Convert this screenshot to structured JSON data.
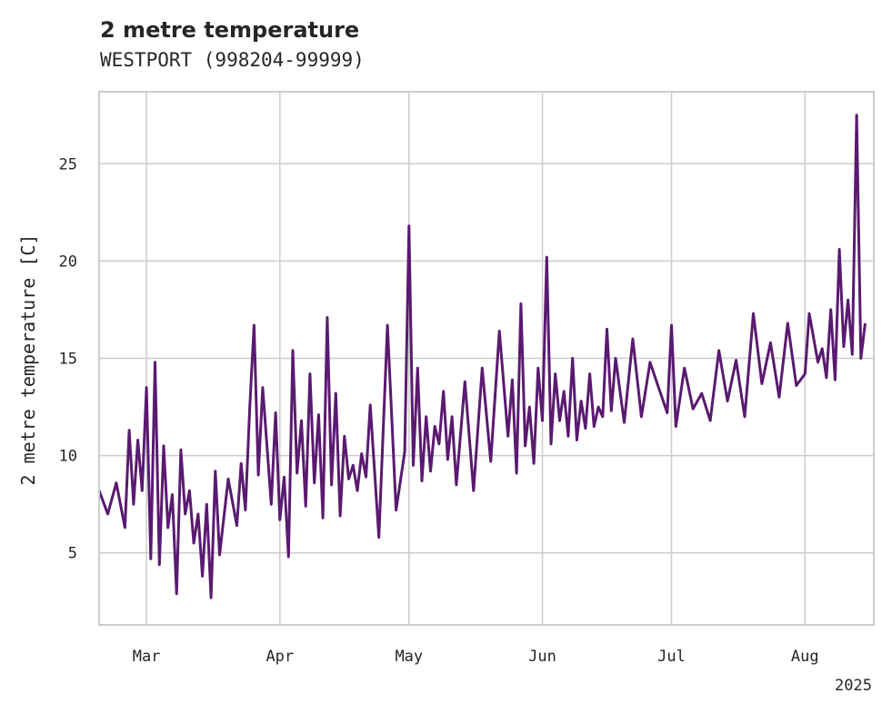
{
  "chart_data": {
    "type": "line",
    "title": "2 metre temperature",
    "subtitle": "WESTPORT (998204-99999)",
    "ylabel": "2 metre temperature [C]",
    "xlabel": "",
    "year_label": "2025",
    "xlim": [
      "2025-02-18",
      "2025-08-17"
    ],
    "ylim": [
      1.3,
      28.7
    ],
    "x_ticks": [
      {
        "date": "2025-03-01",
        "label": "Mar"
      },
      {
        "date": "2025-04-01",
        "label": "Apr"
      },
      {
        "date": "2025-05-01",
        "label": "May"
      },
      {
        "date": "2025-06-01",
        "label": "Jun"
      },
      {
        "date": "2025-07-01",
        "label": "Jul"
      },
      {
        "date": "2025-08-01",
        "label": "Aug"
      }
    ],
    "y_ticks": [
      5,
      10,
      15,
      20,
      25
    ],
    "grid": true,
    "series": [
      {
        "color": "#5a1a70",
        "x": [
          "2025-02-18",
          "2025-02-20",
          "2025-02-22",
          "2025-02-24",
          "2025-02-25",
          "2025-02-26",
          "2025-02-27",
          "2025-02-28",
          "2025-03-01",
          "2025-03-02",
          "2025-03-03",
          "2025-03-04",
          "2025-03-05",
          "2025-03-06",
          "2025-03-07",
          "2025-03-08",
          "2025-03-09",
          "2025-03-10",
          "2025-03-11",
          "2025-03-12",
          "2025-03-13",
          "2025-03-14",
          "2025-03-15",
          "2025-03-16",
          "2025-03-17",
          "2025-03-18",
          "2025-03-20",
          "2025-03-22",
          "2025-03-23",
          "2025-03-24",
          "2025-03-25",
          "2025-03-26",
          "2025-03-27",
          "2025-03-28",
          "2025-03-29",
          "2025-03-30",
          "2025-03-31",
          "2025-04-01",
          "2025-04-02",
          "2025-04-03",
          "2025-04-04",
          "2025-04-05",
          "2025-04-06",
          "2025-04-07",
          "2025-04-08",
          "2025-04-09",
          "2025-04-10",
          "2025-04-11",
          "2025-04-12",
          "2025-04-13",
          "2025-04-14",
          "2025-04-15",
          "2025-04-16",
          "2025-04-17",
          "2025-04-18",
          "2025-04-19",
          "2025-04-20",
          "2025-04-21",
          "2025-04-22",
          "2025-04-24",
          "2025-04-26",
          "2025-04-28",
          "2025-04-30",
          "2025-05-01",
          "2025-05-02",
          "2025-05-03",
          "2025-05-04",
          "2025-05-05",
          "2025-05-06",
          "2025-05-07",
          "2025-05-08",
          "2025-05-09",
          "2025-05-10",
          "2025-05-11",
          "2025-05-12",
          "2025-05-14",
          "2025-05-16",
          "2025-05-18",
          "2025-05-20",
          "2025-05-22",
          "2025-05-24",
          "2025-05-25",
          "2025-05-26",
          "2025-05-27",
          "2025-05-28",
          "2025-05-29",
          "2025-05-30",
          "2025-05-31",
          "2025-06-01",
          "2025-06-02",
          "2025-06-03",
          "2025-06-04",
          "2025-06-05",
          "2025-06-06",
          "2025-06-07",
          "2025-06-08",
          "2025-06-09",
          "2025-06-10",
          "2025-06-11",
          "2025-06-12",
          "2025-06-13",
          "2025-06-14",
          "2025-06-15",
          "2025-06-16",
          "2025-06-17",
          "2025-06-18",
          "2025-06-20",
          "2025-06-22",
          "2025-06-24",
          "2025-06-26",
          "2025-06-28",
          "2025-06-30",
          "2025-07-01",
          "2025-07-02",
          "2025-07-04",
          "2025-07-06",
          "2025-07-08",
          "2025-07-10",
          "2025-07-12",
          "2025-07-14",
          "2025-07-16",
          "2025-07-18",
          "2025-07-20",
          "2025-07-22",
          "2025-07-24",
          "2025-07-26",
          "2025-07-28",
          "2025-07-30",
          "2025-08-01",
          "2025-08-02",
          "2025-08-04",
          "2025-08-05",
          "2025-08-06",
          "2025-08-07",
          "2025-08-08",
          "2025-08-09",
          "2025-08-10",
          "2025-08-11",
          "2025-08-12",
          "2025-08-13",
          "2025-08-14",
          "2025-08-15"
        ],
        "y": [
          8.2,
          7.0,
          8.6,
          6.3,
          11.3,
          7.5,
          10.8,
          8.2,
          13.5,
          4.7,
          14.8,
          4.4,
          10.5,
          6.3,
          8.0,
          2.9,
          10.3,
          7.0,
          8.2,
          5.5,
          7.0,
          3.8,
          7.5,
          2.7,
          9.2,
          4.9,
          8.8,
          6.4,
          9.6,
          7.2,
          12.5,
          16.7,
          9.0,
          13.5,
          10.5,
          7.5,
          12.2,
          6.7,
          8.9,
          4.8,
          15.4,
          9.1,
          11.8,
          7.4,
          14.2,
          8.6,
          12.1,
          6.8,
          17.1,
          8.5,
          13.2,
          6.9,
          11.0,
          8.8,
          9.5,
          8.2,
          10.1,
          8.9,
          12.6,
          5.8,
          16.7,
          7.2,
          10.2,
          21.8,
          9.5,
          14.5,
          8.7,
          12.0,
          9.2,
          11.5,
          10.6,
          13.3,
          9.8,
          12.0,
          8.5,
          13.8,
          8.2,
          14.5,
          9.7,
          16.4,
          11.0,
          13.9,
          9.1,
          17.8,
          10.5,
          12.5,
          9.6,
          14.5,
          11.8,
          20.2,
          10.6,
          14.2,
          11.8,
          13.3,
          11.0,
          15.0,
          10.8,
          12.8,
          11.4,
          14.2,
          11.5,
          12.5,
          12.0,
          16.5,
          12.3,
          15.0,
          11.7,
          16.0,
          12.0,
          14.8,
          13.5,
          12.2,
          16.7,
          11.5,
          14.5,
          12.4,
          13.2,
          11.8,
          15.4,
          12.8,
          14.9,
          12.0,
          17.3,
          13.7,
          15.8,
          13.0,
          16.8,
          13.6,
          14.2,
          17.3,
          14.8,
          15.5,
          14.0,
          17.5,
          13.9,
          20.6,
          15.6,
          18.0,
          15.2,
          27.5,
          15.0,
          16.8
        ]
      }
    ]
  }
}
